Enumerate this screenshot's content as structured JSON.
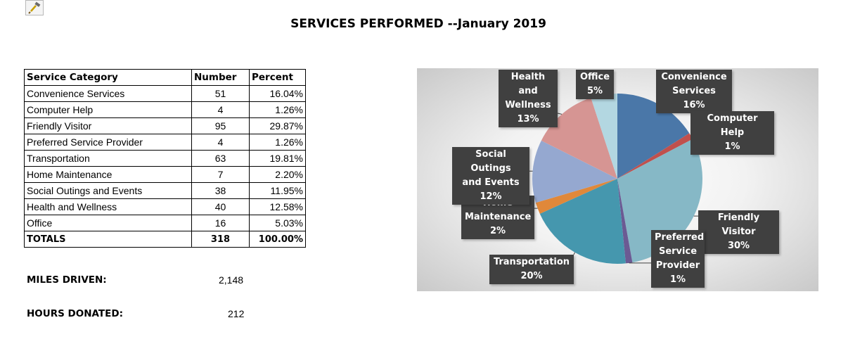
{
  "title": "SERVICES PERFORMED --January 2019",
  "table": {
    "headers": [
      "Service Category",
      "Number",
      "Percent"
    ],
    "rows": [
      {
        "category": "Convenience Services",
        "number": "51",
        "percent": "16.04%"
      },
      {
        "category": "Computer Help",
        "number": "4",
        "percent": "1.26%"
      },
      {
        "category": "Friendly Visitor",
        "number": "95",
        "percent": "29.87%"
      },
      {
        "category": "Preferred Service Provider",
        "number": "4",
        "percent": "1.26%"
      },
      {
        "category": "Transportation",
        "number": "63",
        "percent": "19.81%"
      },
      {
        "category": "Home Maintenance",
        "number": "7",
        "percent": "2.20%"
      },
      {
        "category": "Social Outings and Events",
        "number": "38",
        "percent": "11.95%"
      },
      {
        "category": "Health and Wellness",
        "number": "40",
        "percent": "12.58%"
      },
      {
        "category": "Office",
        "number": "16",
        "percent": "5.03%"
      }
    ],
    "totals": {
      "label": "TOTALS",
      "number": "318",
      "percent": "100.00%"
    }
  },
  "stats": {
    "miles_label": "MILES DRIVEN:",
    "miles_value": "2,148",
    "hours_label": "HOURS DONATED:",
    "hours_value": "212"
  },
  "chart_data": {
    "type": "pie",
    "title": "",
    "slices": [
      {
        "label": "Convenience Services",
        "value": 51,
        "pct_label": "16%",
        "color": "#4A77A8"
      },
      {
        "label": "Computer Help",
        "value": 4,
        "pct_label": "1%",
        "color": "#C0504D"
      },
      {
        "label": "Friendly Visitor",
        "value": 95,
        "pct_label": "30%",
        "color": "#86B8C6"
      },
      {
        "label": "Preferred Service Provider",
        "value": 4,
        "pct_label": "1%",
        "color": "#6B5A93"
      },
      {
        "label": "Transportation",
        "value": 63,
        "pct_label": "20%",
        "color": "#4597AE"
      },
      {
        "label": "Home Maintenance",
        "value": 7,
        "pct_label": "2%",
        "color": "#E0883A"
      },
      {
        "label": "Social Outings and Events",
        "value": 38,
        "pct_label": "12%",
        "color": "#95A8D0"
      },
      {
        "label": "Health and Wellness",
        "value": 40,
        "pct_label": "13%",
        "color": "#D69593"
      },
      {
        "label": "Office",
        "value": 16,
        "pct_label": "5%",
        "color": "#B3D7E1"
      }
    ],
    "labels": [
      {
        "lines": [
          "Convenience",
          "Services",
          "16%"
        ]
      },
      {
        "lines": [
          "Computer Help",
          "1%"
        ]
      },
      {
        "lines": [
          "Friendly Visitor",
          "30%"
        ]
      },
      {
        "lines": [
          "Preferred",
          "Service",
          "Provider",
          "1%"
        ]
      },
      {
        "lines": [
          "Transportation",
          "20%"
        ]
      },
      {
        "lines": [
          "Home",
          "Maintenance",
          "2%"
        ]
      },
      {
        "lines": [
          "Social Outings",
          "and Events",
          "12%"
        ]
      },
      {
        "lines": [
          "Health and",
          "Wellness",
          "13%"
        ]
      },
      {
        "lines": [
          "Office",
          "5%"
        ]
      }
    ],
    "legend": "none"
  }
}
